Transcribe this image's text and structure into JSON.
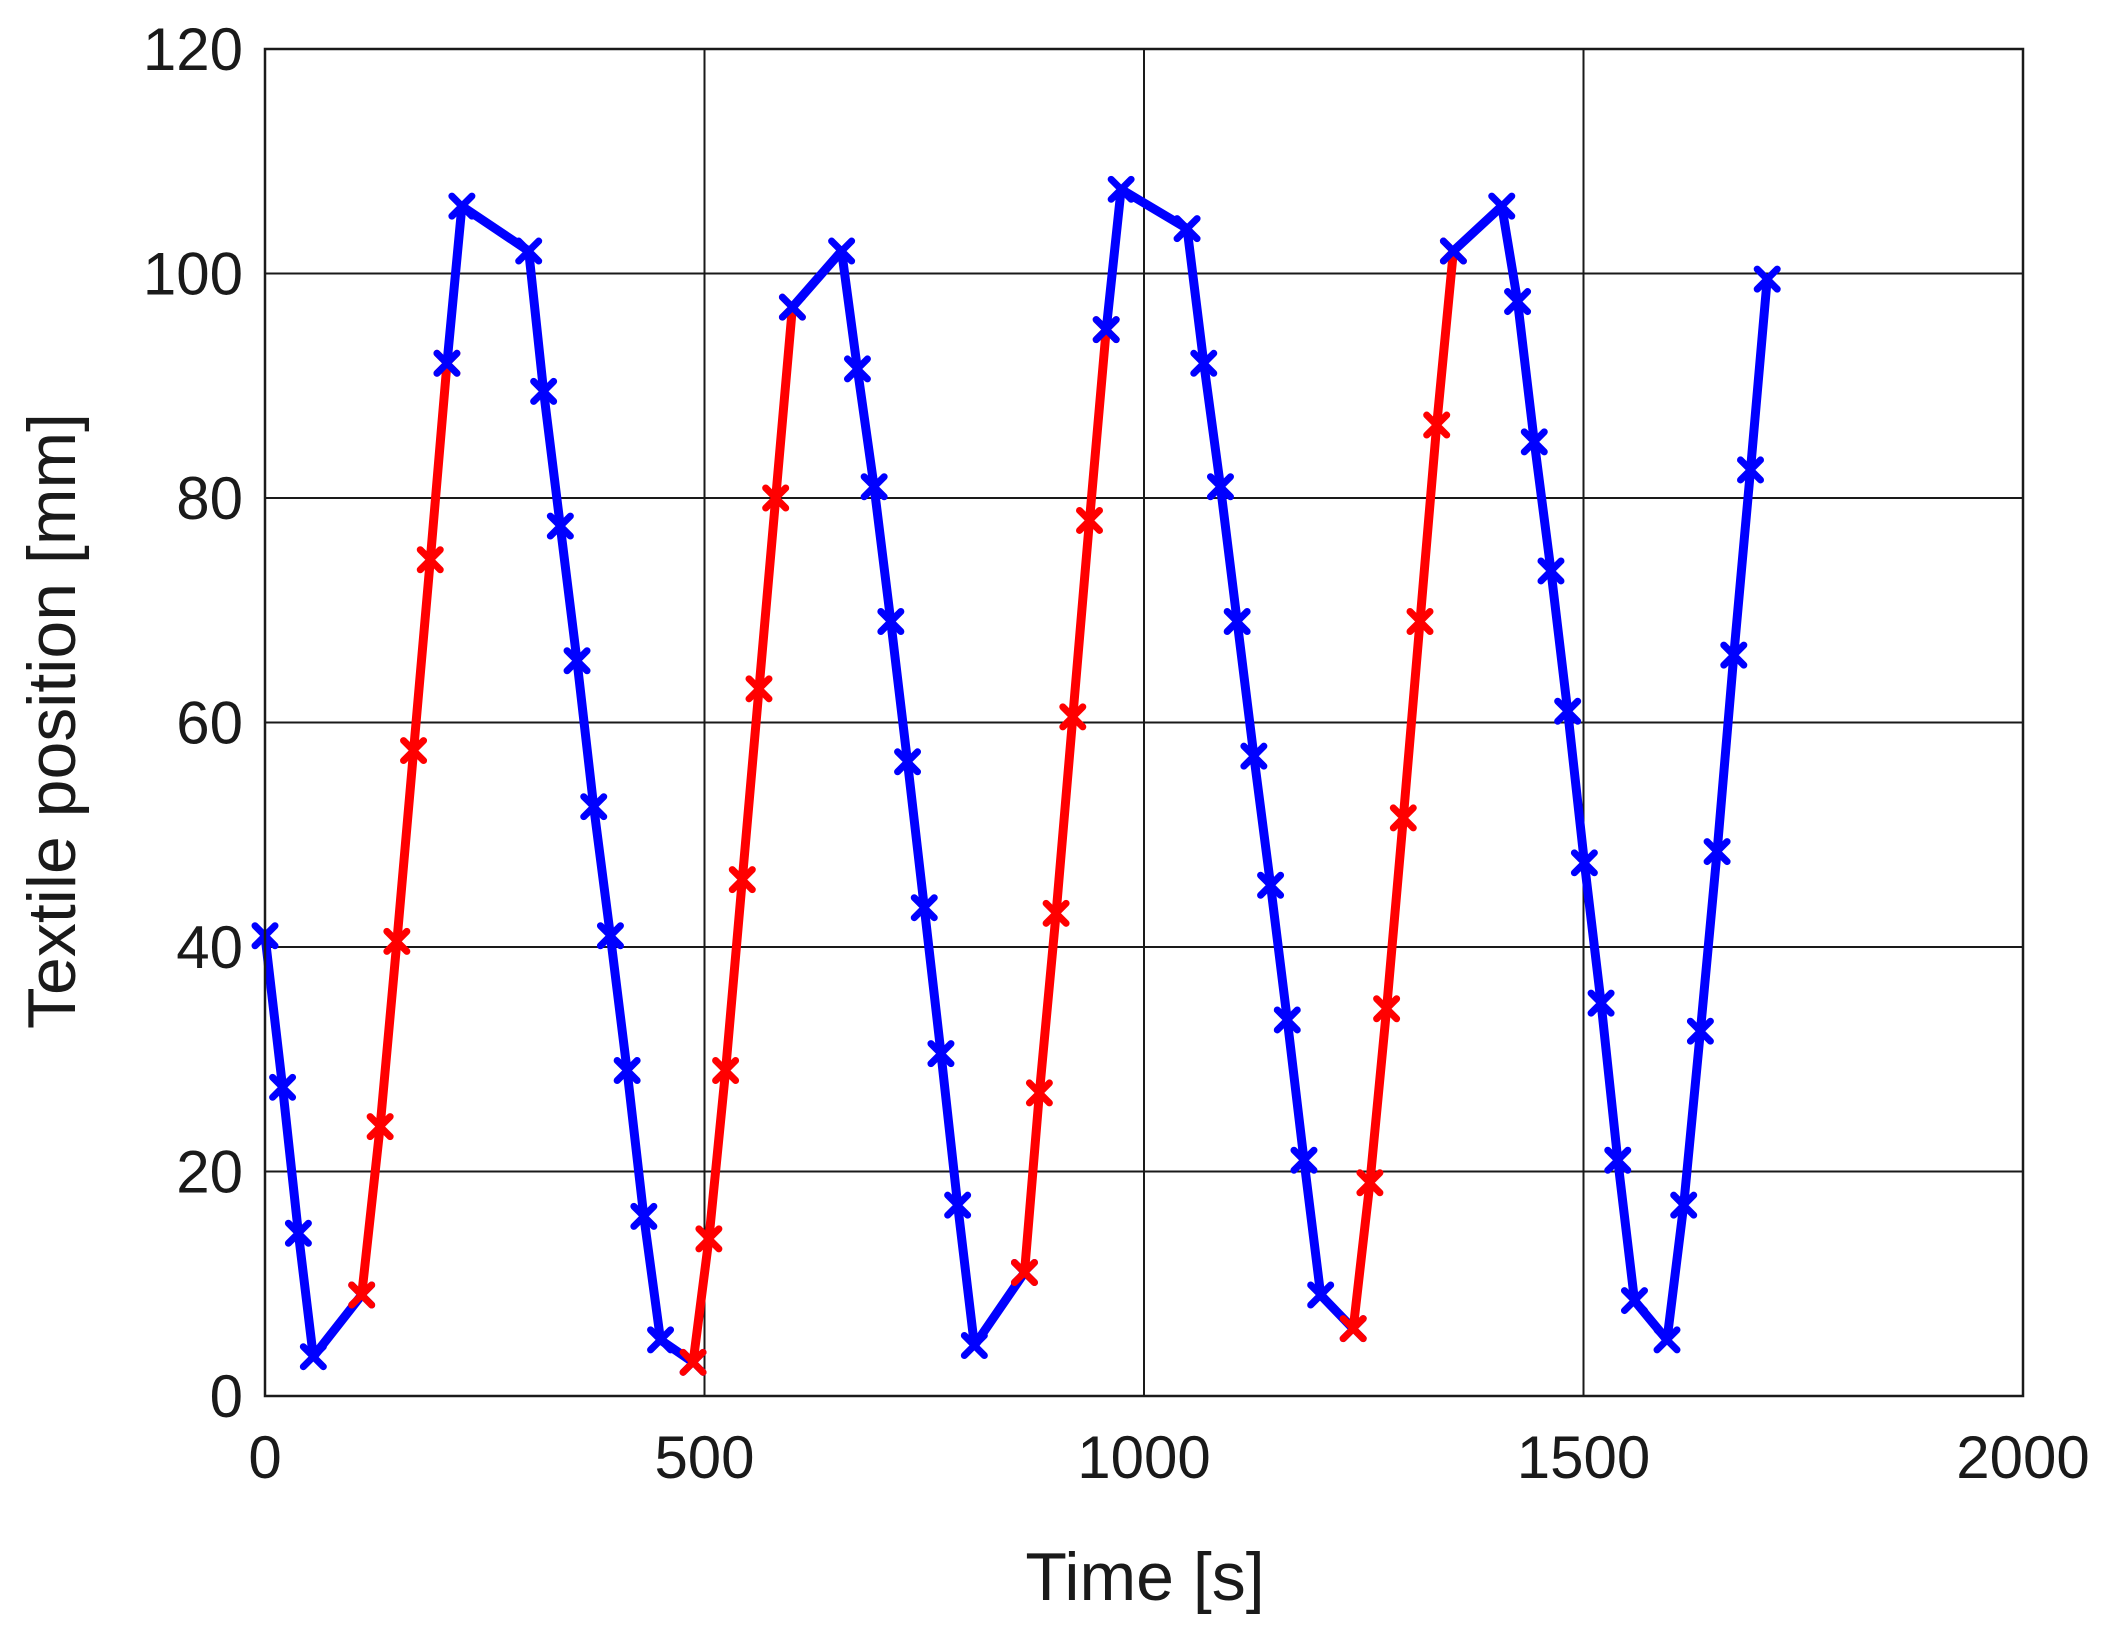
{
  "chart_data": {
    "type": "line",
    "title": "",
    "xlabel": "Time [s]",
    "ylabel": "Textile position [mm]",
    "xlim": [
      0,
      2000
    ],
    "ylim": [
      0,
      120
    ],
    "xticks": [
      0,
      500,
      1000,
      1500,
      2000
    ],
    "yticks": [
      0,
      20,
      40,
      60,
      80,
      100,
      120
    ],
    "grid": true,
    "legend": "none",
    "colors": {
      "blue": "#0000ff",
      "red": "#ff0000",
      "grid": "#1a1a1a"
    },
    "marker": "x",
    "segments": [
      {
        "color": "blue",
        "points": [
          [
            0,
            41
          ],
          [
            20,
            27.5
          ],
          [
            38,
            14.5
          ],
          [
            55,
            3.5
          ],
          [
            110,
            9
          ]
        ]
      },
      {
        "color": "red",
        "points": [
          [
            110,
            9
          ],
          [
            131,
            24
          ],
          [
            150,
            40.5
          ],
          [
            169,
            57.5
          ],
          [
            188,
            74.5
          ],
          [
            207,
            92
          ]
        ]
      },
      {
        "color": "blue",
        "points": [
          [
            207,
            92
          ],
          [
            224,
            106
          ],
          [
            300,
            102
          ],
          [
            317,
            89.5
          ],
          [
            336,
            77.5
          ],
          [
            355,
            65.5
          ],
          [
            374,
            52.5
          ],
          [
            393,
            41
          ],
          [
            412,
            29
          ],
          [
            431,
            16
          ],
          [
            450,
            5
          ],
          [
            487,
            3
          ]
        ]
      },
      {
        "color": "red",
        "points": [
          [
            487,
            3
          ],
          [
            505,
            14
          ],
          [
            524,
            29
          ],
          [
            543,
            46
          ],
          [
            562,
            63
          ],
          [
            581,
            80
          ],
          [
            600,
            97
          ]
        ]
      },
      {
        "color": "blue",
        "points": [
          [
            600,
            97
          ],
          [
            656,
            102
          ],
          [
            674,
            91.5
          ],
          [
            693,
            81
          ],
          [
            712,
            69
          ],
          [
            731,
            56.5
          ],
          [
            750,
            43.5
          ],
          [
            769,
            30.5
          ],
          [
            788,
            17
          ],
          [
            807,
            4.5
          ],
          [
            864,
            11
          ]
        ]
      },
      {
        "color": "red",
        "points": [
          [
            864,
            11
          ],
          [
            881,
            27
          ],
          [
            900,
            43
          ],
          [
            919,
            60.5
          ],
          [
            938,
            78
          ],
          [
            957,
            95
          ]
        ]
      },
      {
        "color": "blue",
        "points": [
          [
            957,
            95
          ],
          [
            974,
            107.5
          ],
          [
            1049,
            104
          ],
          [
            1068,
            92
          ],
          [
            1087,
            81
          ],
          [
            1106,
            69
          ],
          [
            1125,
            57
          ],
          [
            1144,
            45.5
          ],
          [
            1163,
            33.5
          ],
          [
            1182,
            21
          ],
          [
            1201,
            9
          ],
          [
            1238,
            6
          ]
        ]
      },
      {
        "color": "red",
        "points": [
          [
            1238,
            6
          ],
          [
            1257,
            19
          ],
          [
            1276,
            34.5
          ],
          [
            1295,
            51.5
          ],
          [
            1314,
            69
          ],
          [
            1333,
            86.5
          ],
          [
            1352,
            102
          ]
        ]
      },
      {
        "color": "blue",
        "points": [
          [
            1352,
            102
          ],
          [
            1407,
            106
          ],
          [
            1425,
            97.5
          ],
          [
            1444,
            85
          ],
          [
            1463,
            73.5
          ],
          [
            1482,
            61
          ],
          [
            1501,
            47.5
          ],
          [
            1520,
            35
          ],
          [
            1539,
            21
          ],
          [
            1558,
            8.5
          ],
          [
            1595,
            5
          ],
          [
            1614,
            17
          ],
          [
            1633,
            32.5
          ],
          [
            1652,
            48.5
          ],
          [
            1671,
            66
          ],
          [
            1690,
            82.5
          ],
          [
            1709,
            99.5
          ]
        ]
      }
    ]
  }
}
